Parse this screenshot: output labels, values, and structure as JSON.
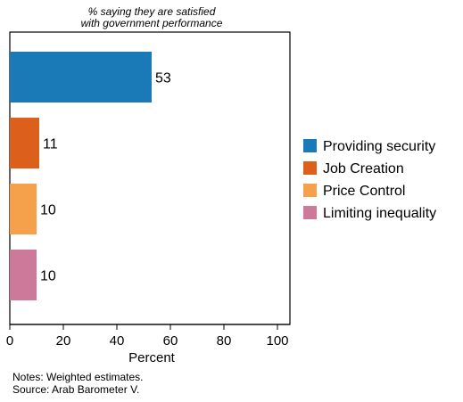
{
  "chart_data": {
    "type": "bar",
    "orientation": "horizontal",
    "title": "% saying they are satisfied",
    "subtitle": "with government performance",
    "xlabel": "Percent",
    "ylabel": "",
    "xlim": [
      0,
      100
    ],
    "x_ticks": [
      "0",
      "20",
      "40",
      "60",
      "80",
      "100"
    ],
    "grid": false,
    "legend_position": "right",
    "categories": [
      "Providing security",
      "Job Creation",
      "Price Control",
      "Limiting inequality"
    ],
    "values": [
      53,
      11,
      10,
      10
    ],
    "value_labels": [
      "53",
      "11",
      "10",
      "10"
    ],
    "colors": [
      "#1a7ab8",
      "#dd5f1c",
      "#f5a04a",
      "#cd799a"
    ]
  },
  "notes": {
    "line1": "Notes: Weighted estimates.",
    "line2": "Source: Arab Barometer V."
  }
}
